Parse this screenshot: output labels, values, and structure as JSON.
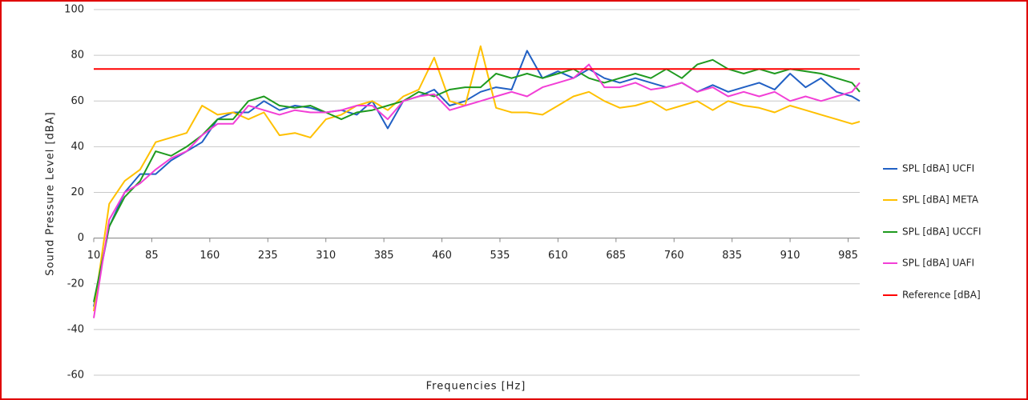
{
  "chart_data": {
    "type": "line",
    "y_label": "Sound Pressure Level [dBA]",
    "x_label": "Frequencies [Hz]",
    "x": [
      10,
      30,
      50,
      70,
      90,
      110,
      130,
      150,
      170,
      190,
      210,
      230,
      250,
      270,
      290,
      310,
      330,
      350,
      370,
      390,
      410,
      430,
      450,
      470,
      490,
      510,
      530,
      550,
      570,
      590,
      610,
      630,
      650,
      670,
      690,
      710,
      730,
      750,
      770,
      790,
      810,
      830,
      850,
      870,
      890,
      910,
      930,
      950,
      970,
      990,
      1000
    ],
    "xlim": [
      10,
      1000
    ],
    "xticks": [
      10,
      85,
      160,
      235,
      310,
      385,
      460,
      535,
      610,
      685,
      760,
      835,
      910,
      985
    ],
    "ylim": [
      -60,
      100
    ],
    "yticks": [
      -60,
      -40,
      -20,
      0,
      20,
      40,
      60,
      80,
      100
    ],
    "grid": true,
    "legend": "right",
    "series": [
      {
        "name": "SPL [dBA] UCFI",
        "color": "#2160c4",
        "values": [
          -30,
          5,
          20,
          28,
          28,
          34,
          38,
          42,
          52,
          55,
          55,
          60,
          56,
          58,
          57,
          55,
          56,
          54,
          60,
          48,
          60,
          62,
          65,
          58,
          60,
          64,
          66,
          65,
          82,
          70,
          73,
          70,
          74,
          70,
          68,
          70,
          68,
          66,
          68,
          64,
          67,
          64,
          66,
          68,
          65,
          72,
          66,
          70,
          64,
          62,
          60
        ]
      },
      {
        "name": "SPL [dBA] META",
        "color": "#ffc000",
        "values": [
          -32,
          15,
          25,
          30,
          42,
          44,
          46,
          58,
          54,
          55,
          52,
          55,
          45,
          46,
          44,
          52,
          54,
          58,
          60,
          56,
          62,
          65,
          79,
          60,
          58,
          84,
          57,
          55,
          55,
          54,
          58,
          62,
          64,
          60,
          57,
          58,
          60,
          56,
          58,
          60,
          56,
          60,
          58,
          57,
          55,
          58,
          56,
          54,
          52,
          50,
          51
        ]
      },
      {
        "name": "SPL [dBA] UCCFI",
        "color": "#1f9a1f",
        "values": [
          -28,
          5,
          18,
          25,
          38,
          36,
          40,
          45,
          52,
          52,
          60,
          62,
          58,
          57,
          58,
          55,
          52,
          55,
          56,
          58,
          60,
          64,
          62,
          65,
          66,
          66,
          72,
          70,
          72,
          70,
          72,
          74,
          70,
          68,
          70,
          72,
          70,
          74,
          70,
          76,
          78,
          74,
          72,
          74,
          72,
          74,
          73,
          72,
          70,
          68,
          64
        ]
      },
      {
        "name": "SPL [dBA] UAFI",
        "color": "#f23fd6",
        "values": [
          -35,
          8,
          20,
          24,
          30,
          35,
          38,
          45,
          50,
          50,
          58,
          56,
          54,
          56,
          55,
          55,
          56,
          58,
          58,
          52,
          60,
          62,
          63,
          56,
          58,
          60,
          62,
          64,
          62,
          66,
          68,
          70,
          76,
          66,
          66,
          68,
          65,
          66,
          68,
          64,
          66,
          62,
          64,
          62,
          64,
          60,
          62,
          60,
          62,
          64,
          68
        ]
      },
      {
        "name": "Reference [dBA]",
        "color": "#ff0000",
        "values": [
          74,
          74,
          74,
          74,
          74,
          74,
          74,
          74,
          74,
          74,
          74,
          74,
          74,
          74,
          74,
          74,
          74,
          74,
          74,
          74,
          74,
          74,
          74,
          74,
          74,
          74,
          74,
          74,
          74,
          74,
          74,
          74,
          74,
          74,
          74,
          74,
          74,
          74,
          74,
          74,
          74,
          74,
          74,
          74,
          74,
          74,
          74,
          74,
          74,
          74,
          74
        ]
      }
    ]
  }
}
